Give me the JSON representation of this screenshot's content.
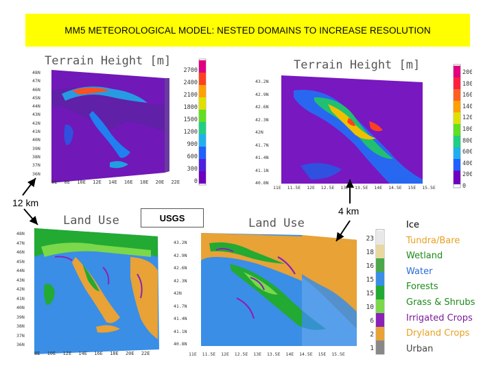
{
  "banner": {
    "title": "MM5 METEOROLOGICAL MODEL: NESTED DOMAINS TO INCREASE RESOLUTION",
    "bg_color": "#ffff00"
  },
  "panels": {
    "terrain_italy": {
      "title": "Terrain Height [m]",
      "lat_labels": [
        "48N",
        "47N",
        "46N",
        "45N",
        "44N",
        "43N",
        "42N",
        "41N",
        "40N",
        "39N",
        "38N",
        "37N",
        "36N"
      ],
      "lon_labels": [
        "6E",
        "8E",
        "10E",
        "12E",
        "14E",
        "16E",
        "18E",
        "20E",
        "22E"
      ],
      "colorbar_labels": [
        "2700",
        "2400",
        "2100",
        "1800",
        "1500",
        "1200",
        "900",
        "600",
        "300",
        "0"
      ]
    },
    "terrain_central": {
      "title": "Terrain Height [m]",
      "lat_labels": [
        "43.2N",
        "42.9N",
        "42.6N",
        "42.3N",
        "42N",
        "41.7N",
        "41.4N",
        "41.1N",
        "40.8N"
      ],
      "lon_labels": [
        "11E",
        "11.5E",
        "12E",
        "12.5E",
        "13E",
        "13.5E",
        "14E",
        "14.5E",
        "15E",
        "15.5E"
      ],
      "colorbar_labels": [
        "2000",
        "1800",
        "1600",
        "1400",
        "1200",
        "1000",
        "800",
        "600",
        "400",
        "200",
        "0"
      ]
    },
    "landuse_italy": {
      "title": "Land Use",
      "lat_labels": [
        "48N",
        "47N",
        "46N",
        "45N",
        "44N",
        "43N",
        "42N",
        "41N",
        "40N",
        "39N",
        "38N",
        "37N",
        "36N"
      ],
      "lon_labels": [
        "8E",
        "10E",
        "12E",
        "14E",
        "16E",
        "18E",
        "20E",
        "22E"
      ]
    },
    "landuse_central": {
      "title": "Land Use",
      "lat_labels": [
        "43.2N",
        "42.9N",
        "42.6N",
        "42.3N",
        "42N",
        "41.7N",
        "41.4N",
        "41.1N",
        "40.8N"
      ],
      "lon_labels": [
        "11E",
        "11.5E",
        "12E",
        "12.5E",
        "13E",
        "13.5E",
        "14E",
        "14.5E",
        "15E",
        "15.5E"
      ],
      "colorbar_labels": [
        "23",
        "18",
        "16",
        "15",
        "15",
        "10",
        "6",
        "2",
        "1"
      ]
    }
  },
  "annotations": {
    "left_res": "12 km",
    "right_res": "4 km",
    "usgs": "USGS"
  },
  "land_use_legend": [
    {
      "label": "Ice",
      "color": "#000000"
    },
    {
      "label": "Tundra/Bare",
      "color": "#e8a020"
    },
    {
      "label": "Wetland",
      "color": "#1a8a1a"
    },
    {
      "label": "Water",
      "color": "#2a6ad8"
    },
    {
      "label": "Forests",
      "color": "#1a8a1a"
    },
    {
      "label": "Grass & Shrubs",
      "color": "#1a8a1a"
    },
    {
      "label": "Irrigated Crops",
      "color": "#7a1a9a"
    },
    {
      "label": "Dryland Crops",
      "color": "#e8a020"
    },
    {
      "label": "Urban",
      "color": "#444444"
    }
  ],
  "colors": {
    "terrain_scale": [
      "#7000c0",
      "#5020e0",
      "#2060ff",
      "#20b0f0",
      "#20d080",
      "#60e020",
      "#e0e000",
      "#ffa000",
      "#ff4020",
      "#e00080"
    ],
    "landuse": {
      "water": "#3a8ee6",
      "crops": "#e8a236",
      "forest": "#22aa33",
      "grass": "#7ad84a",
      "irrigated": "#8a22b8"
    }
  }
}
